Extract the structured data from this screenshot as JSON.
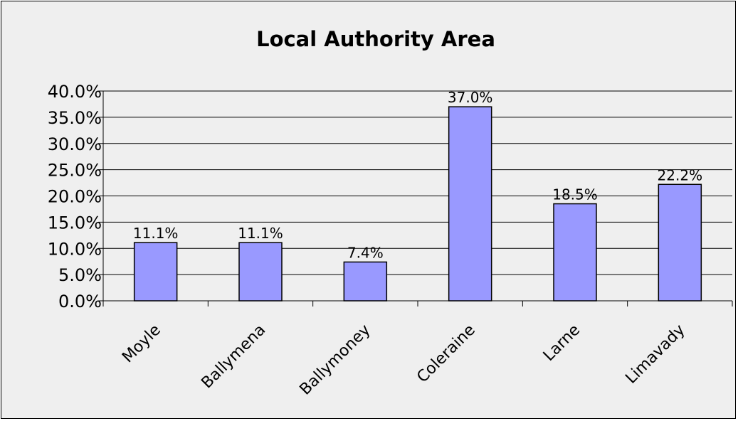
{
  "chart_data": {
    "type": "bar",
    "title": "Local Authority Area",
    "xlabel": "",
    "ylabel": "",
    "categories": [
      "Moyle",
      "Ballymena",
      "Ballymoney",
      "Coleraine",
      "Larne",
      "Limavady"
    ],
    "values": [
      11.1,
      11.1,
      7.4,
      37.0,
      18.5,
      22.2
    ],
    "value_labels": [
      "11.1%",
      "11.1%",
      "7.4%",
      "37.0%",
      "18.5%",
      "22.2%"
    ],
    "ylim": [
      0,
      40
    ],
    "yticks": [
      0,
      5,
      10,
      15,
      20,
      25,
      30,
      35,
      40
    ],
    "ytick_labels": [
      "0.0%",
      "5.0%",
      "10.0%",
      "15.0%",
      "20.0%",
      "25.0%",
      "30.0%",
      "35.0%",
      "40.0%"
    ],
    "grid": true,
    "legend": "none",
    "colors": {
      "bar_fill": "#9999ff",
      "bar_stroke": "#000000",
      "plot_background": "#efefef",
      "gridline": "#000000"
    }
  }
}
